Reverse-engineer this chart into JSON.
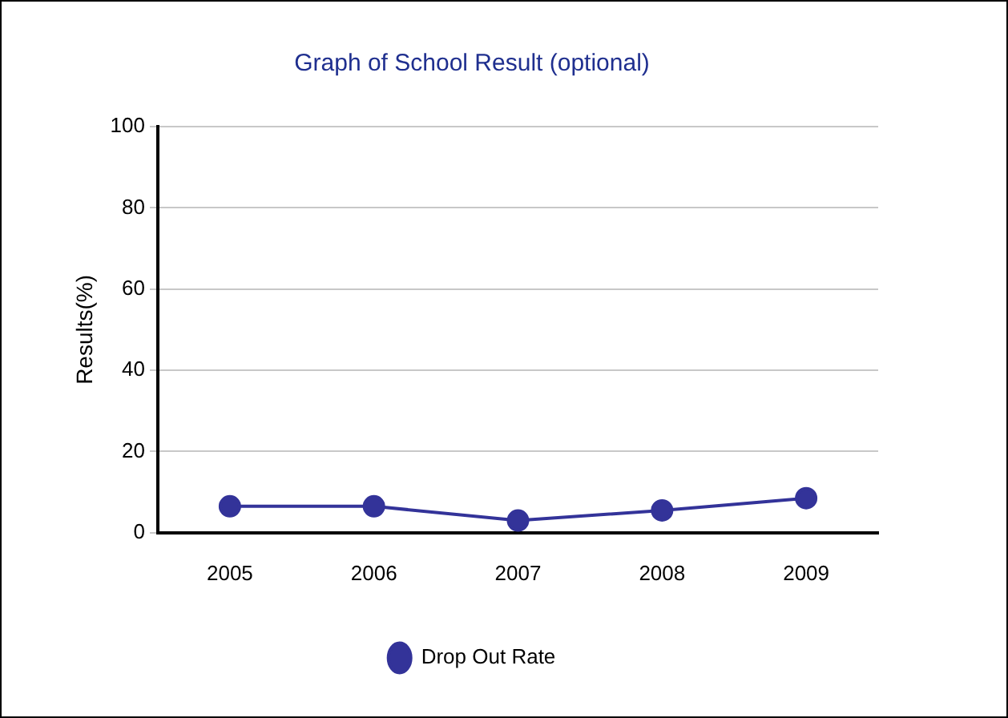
{
  "chart_data": {
    "type": "line",
    "title": "Graph of School Result (optional)",
    "ylabel": "Results(%)",
    "categories": [
      "2005",
      "2006",
      "2007",
      "2008",
      "2009"
    ],
    "series": [
      {
        "name": "Drop Out Rate",
        "color": "#333399",
        "values": [
          6.5,
          6.5,
          3,
          5.5,
          8.5
        ]
      }
    ],
    "ylim": [
      0,
      100
    ],
    "yticks": [
      0,
      20,
      40,
      60,
      80,
      100
    ],
    "grid": "y",
    "legend": "bottom",
    "marker": "circle",
    "line_style": "solid"
  }
}
